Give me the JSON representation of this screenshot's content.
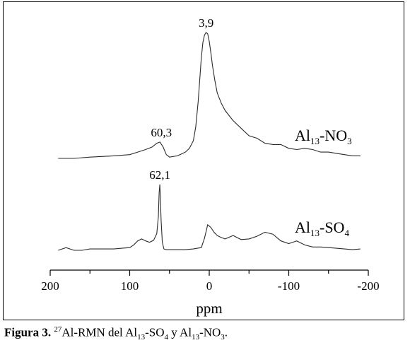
{
  "chart_data": {
    "type": "line",
    "xlabel": "ppm",
    "xlim": [
      200,
      -200
    ],
    "x_ticks": [
      "200",
      "100",
      "0",
      "-100",
      "-200"
    ],
    "series": [
      {
        "name_parts": [
          "Al",
          "13",
          "-NO",
          "3"
        ],
        "peaks": [
          {
            "ppm": 3.9,
            "label": "3,9"
          },
          {
            "ppm": 60.3,
            "label": "60,3"
          }
        ],
        "x": [
          190,
          170,
          150,
          120,
          100,
          90,
          80,
          72,
          66,
          62,
          58,
          54,
          50,
          40,
          30,
          25,
          20,
          17,
          14,
          12,
          10,
          8,
          6,
          4,
          2,
          0,
          -2,
          -4,
          -7,
          -10,
          -15,
          -20,
          -30,
          -40,
          -50,
          -60,
          -70,
          -80,
          -90,
          -100,
          -110,
          -120,
          -130,
          -140,
          -150,
          -160,
          -170,
          -180,
          -190
        ],
        "y": [
          0.0,
          0.0,
          0.01,
          0.02,
          0.03,
          0.05,
          0.07,
          0.09,
          0.12,
          0.13,
          0.09,
          0.03,
          0.01,
          0.02,
          0.05,
          0.08,
          0.14,
          0.25,
          0.45,
          0.62,
          0.8,
          0.92,
          0.98,
          1.0,
          0.99,
          0.93,
          0.84,
          0.74,
          0.62,
          0.52,
          0.44,
          0.38,
          0.3,
          0.24,
          0.18,
          0.16,
          0.12,
          0.11,
          0.11,
          0.08,
          0.07,
          0.08,
          0.07,
          0.05,
          0.05,
          0.04,
          0.03,
          0.02,
          0.02
        ]
      },
      {
        "name_parts": [
          "Al",
          "13",
          "-SO",
          "4"
        ],
        "peaks": [
          {
            "ppm": 62.1,
            "label": "62,1"
          }
        ],
        "x": [
          190,
          180,
          175,
          170,
          160,
          150,
          140,
          120,
          110,
          100,
          95,
          90,
          85,
          80,
          75,
          70,
          66,
          64,
          63,
          62.1,
          61.5,
          60.5,
          59,
          57,
          54,
          50,
          40,
          30,
          20,
          15,
          10,
          6,
          2,
          -2,
          -6,
          -10,
          -15,
          -20,
          -30,
          -40,
          -50,
          -60,
          -70,
          -80,
          -90,
          -100,
          -105,
          -110,
          -120,
          -130,
          -140,
          -150,
          -160,
          -170,
          -180,
          -190
        ],
        "y": [
          0.0,
          0.04,
          0.02,
          0.0,
          0.0,
          0.02,
          0.02,
          0.02,
          0.03,
          0.04,
          0.08,
          0.14,
          0.17,
          0.14,
          0.12,
          0.15,
          0.25,
          0.5,
          0.85,
          0.98,
          0.8,
          0.45,
          0.12,
          0.02,
          0.01,
          0.01,
          0.01,
          0.01,
          0.02,
          0.03,
          0.04,
          0.18,
          0.38,
          0.34,
          0.27,
          0.22,
          0.19,
          0.17,
          0.22,
          0.16,
          0.17,
          0.21,
          0.27,
          0.24,
          0.14,
          0.1,
          0.12,
          0.14,
          0.08,
          0.05,
          0.05,
          0.04,
          0.03,
          0.02,
          0.01,
          0.02
        ]
      }
    ]
  },
  "caption": {
    "figure_label": "Figura 3.",
    "sup": "27",
    "text_1": "Al-RMN del Al",
    "sub_1": "13",
    "text_2": "-SO",
    "sub_2": "4",
    "text_3": " y Al",
    "sub_3": "13",
    "text_4": "-NO",
    "sub_4": "3",
    "text_5": "."
  }
}
